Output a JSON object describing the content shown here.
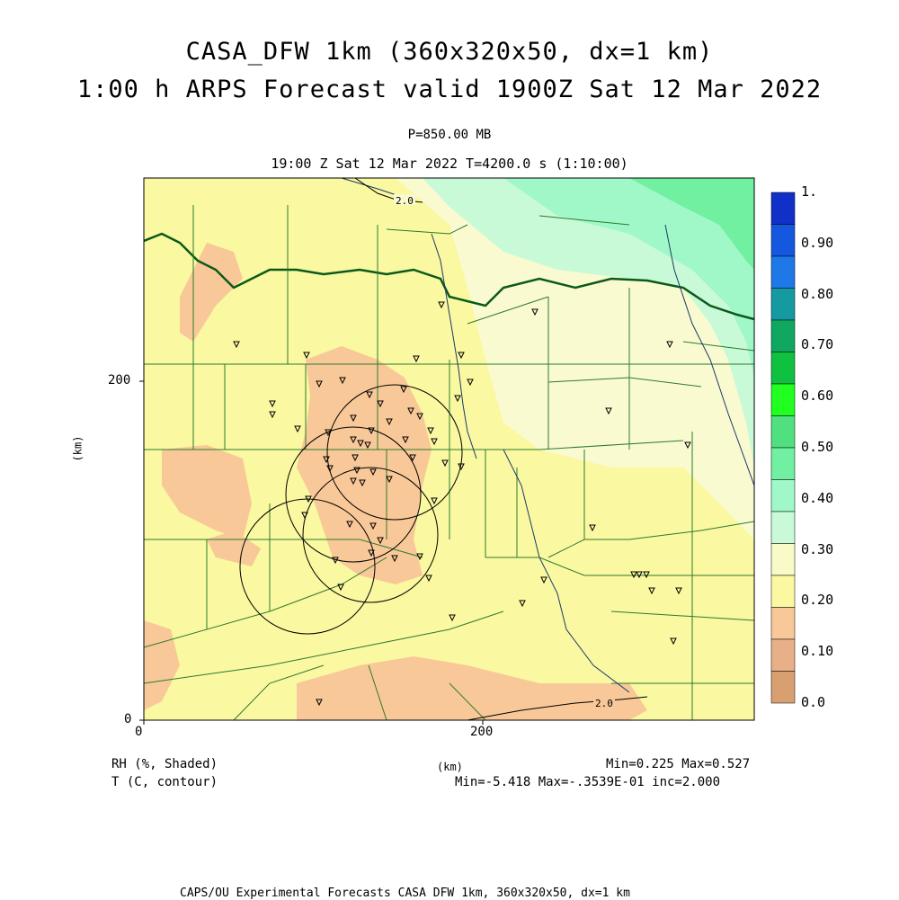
{
  "header": {
    "title_line1": "CASA_DFW 1km (360x320x50, dx=1 km)",
    "title_line2": "1:00 h ARPS Forecast valid 1900Z Sat 12 Mar 2022",
    "pressure": "P=850.00 MB",
    "valid_time": "19:00 Z Sat 12 Mar 2022   T=4200.0 s (1:10:00)"
  },
  "axes": {
    "x_ticks": [
      "0",
      "200"
    ],
    "y_ticks": [
      "0",
      "200"
    ],
    "x_label": "(km)",
    "y_label": "(km)"
  },
  "contour_labels": [
    "2.0",
    "2.0"
  ],
  "colorbar": {
    "labels": [
      "1.",
      "0.90",
      "0.80",
      "0.70",
      "0.60",
      "0.50",
      "0.40",
      "0.30",
      "0.20",
      "0.10",
      "0.0"
    ],
    "colors": [
      "#1030c8",
      "#1458e0",
      "#1e78e8",
      "#149aa0",
      "#10a860",
      "#10c040",
      "#20ff20",
      "#50e080",
      "#70f0a0",
      "#a0f8c8",
      "#c8fad8",
      "#f8fac8",
      "#faf8a0",
      "#f8c898",
      "#e8b088",
      "#d8a070"
    ]
  },
  "footer": {
    "field1": "RH (%, Shaded)",
    "field2": "T (C, contour)",
    "unit": "(km)",
    "rh_stats": "Min=0.225 Max=0.527",
    "t_stats": "Min=-5.418 Max=-.3539E-01 inc=2.000",
    "credits": "CAPS/OU Experimental Forecasts  CASA DFW 1km, 360x320x50, dx=1 km"
  }
}
